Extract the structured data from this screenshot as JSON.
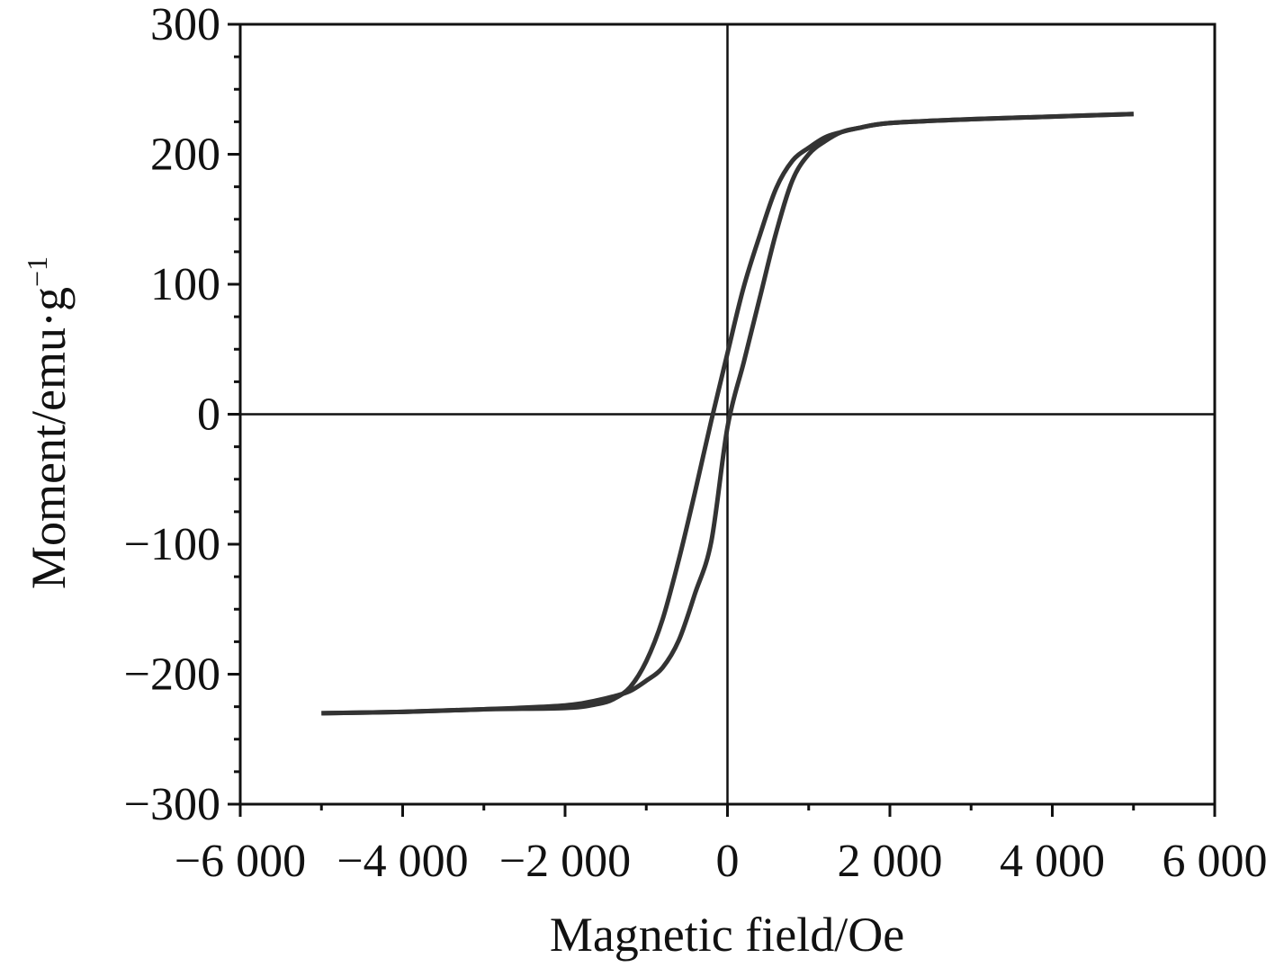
{
  "chart_data": {
    "type": "line",
    "xlabel": "Magnetic field/Oe",
    "ylabel_main": "Moment/emu·g",
    "ylabel_sup": "−1",
    "xlim": [
      -6000,
      6000
    ],
    "ylim": [
      -300,
      300
    ],
    "x_ticks": [
      -6000,
      -4000,
      -2000,
      0,
      2000,
      4000,
      6000
    ],
    "x_tick_labels": [
      "−6 000",
      "−4 000",
      "−2 000",
      "0",
      "2 000",
      "4 000",
      "6 000"
    ],
    "y_ticks": [
      300,
      200,
      100,
      0,
      -100,
      -200,
      -300
    ],
    "y_tick_labels": [
      "300",
      "200",
      "100",
      "0",
      "−100",
      "−200",
      "−300"
    ],
    "grid": false,
    "zero_lines": true,
    "line_color": "#333333",
    "series": [
      {
        "branch": "descending",
        "x": [
          5000,
          4000,
          3000,
          2000,
          1600,
          1400,
          1200,
          1000,
          800,
          600,
          400,
          200,
          0,
          -200,
          -400,
          -600,
          -800,
          -1000,
          -1200,
          -1400,
          -1600,
          -2000,
          -3000,
          -4000,
          -5000
        ],
        "y": [
          231,
          229,
          227,
          224,
          220,
          217,
          213,
          205,
          195,
          174,
          138,
          98,
          47,
          -5,
          -60,
          -112,
          -158,
          -190,
          -210,
          -219,
          -223,
          -226,
          -227,
          -229,
          -230
        ]
      },
      {
        "branch": "ascending",
        "x": [
          -5000,
          -4000,
          -3000,
          -2000,
          -1600,
          -1400,
          -1200,
          -1000,
          -800,
          -600,
          -400,
          -200,
          0,
          200,
          400,
          600,
          800,
          1000,
          1200,
          1400,
          1600,
          2000,
          3000,
          4000,
          5000
        ],
        "y": [
          -230,
          -229,
          -227,
          -224,
          -220,
          -217,
          -213,
          -205,
          -195,
          -174,
          -138,
          -98,
          -10,
          40,
          90,
          140,
          180,
          200,
          210,
          217,
          220,
          224,
          227,
          229,
          231
        ]
      }
    ]
  }
}
